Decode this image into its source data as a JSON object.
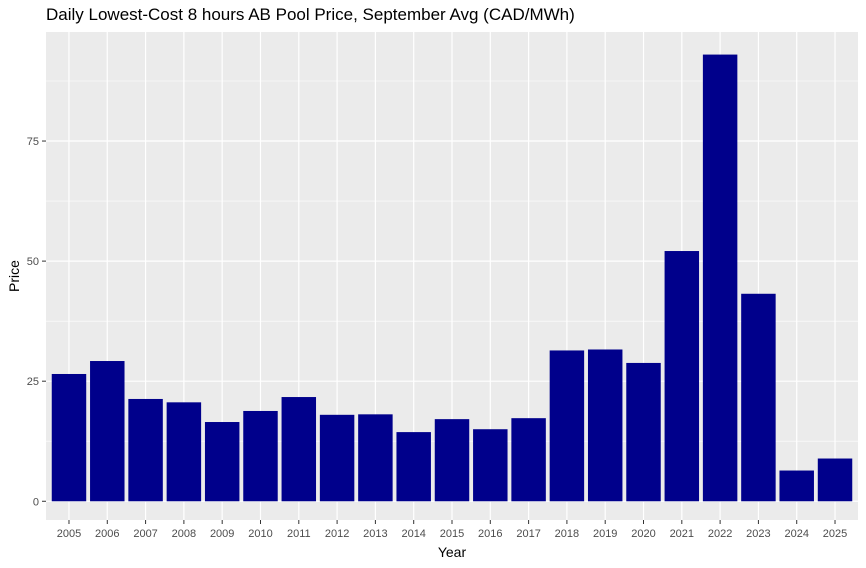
{
  "chart_data": {
    "type": "bar",
    "title": "Daily Lowest-Cost 8 hours AB Pool Price, September Avg (CAD/MWh)",
    "xlabel": "Year",
    "ylabel": "Price",
    "categories": [
      "2005",
      "2006",
      "2007",
      "2008",
      "2009",
      "2010",
      "2011",
      "2012",
      "2013",
      "2014",
      "2015",
      "2016",
      "2017",
      "2018",
      "2019",
      "2020",
      "2021",
      "2022",
      "2023",
      "2024",
      "2025"
    ],
    "values": [
      26.5,
      29.2,
      21.3,
      20.6,
      16.5,
      18.8,
      21.7,
      18.0,
      18.1,
      14.4,
      17.1,
      15.0,
      17.3,
      31.4,
      31.6,
      28.8,
      52.1,
      93.0,
      43.2,
      6.4,
      8.9
    ],
    "ylim": [
      -3.9,
      97.7
    ],
    "yticks": [
      0,
      25,
      50,
      75
    ],
    "ytick_labels": [
      "0",
      "25",
      "50",
      "75"
    ],
    "grid": true,
    "bar_color": "#00008B",
    "panel_color": "#EBEBEB",
    "grid_color": "#FFFFFF"
  }
}
